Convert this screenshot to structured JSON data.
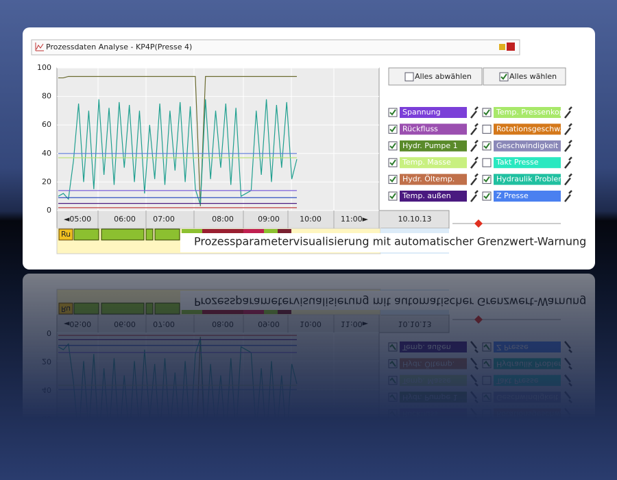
{
  "window": {
    "title": "Prozessdaten Analyse - KP4P(Presse 4)"
  },
  "chart_data": {
    "type": "line",
    "ylim": [
      0,
      100
    ],
    "yticks": [
      0,
      20,
      40,
      60,
      80,
      100
    ],
    "grid": true,
    "series": [
      {
        "color": "#6b6b30",
        "values": [
          93,
          93,
          94,
          94,
          94,
          94,
          94,
          94,
          94,
          94,
          94,
          94,
          94,
          94,
          94,
          94,
          94,
          94,
          94,
          94,
          94,
          94,
          94,
          94,
          94,
          94,
          94,
          94,
          3,
          94,
          94,
          94,
          94,
          94,
          94,
          94,
          94,
          94,
          94,
          94,
          94,
          94,
          94,
          94,
          94,
          94,
          94,
          94
        ]
      },
      {
        "color": "#1f9f8f",
        "values": [
          10,
          12,
          8,
          35,
          75,
          20,
          70,
          15,
          78,
          25,
          72,
          18,
          76,
          30,
          74,
          20,
          70,
          12,
          60,
          22,
          75,
          18,
          70,
          28,
          76,
          20,
          73,
          15,
          4,
          78,
          22,
          70,
          30,
          75,
          18,
          72,
          10,
          12,
          14,
          70,
          25,
          78,
          20,
          74,
          30,
          76,
          22,
          36
        ]
      },
      {
        "color": "#b8e070",
        "values": [
          37,
          37
        ]
      },
      {
        "color": "#5a7ad8",
        "values": [
          40,
          40
        ]
      },
      {
        "color": "#7b5fd8",
        "values": [
          14,
          14
        ]
      },
      {
        "color": "#3050c0",
        "values": [
          9,
          9
        ]
      },
      {
        "color": "#4a1a80",
        "values": [
          5,
          5
        ]
      },
      {
        "color": "#c04040",
        "values": [
          2,
          2
        ]
      }
    ]
  },
  "time_axis": {
    "labels": [
      "◄05:00",
      "06:00",
      "07:00",
      "08:00",
      "09:00",
      "10:00",
      "11:00►"
    ],
    "date": "10.10.13"
  },
  "status_bar": {
    "label": "Ru"
  },
  "buttons": [
    {
      "label": "Alles abwählen",
      "checked": false
    },
    {
      "label": "Alles wählen",
      "checked": true
    }
  ],
  "parameters": [
    {
      "label": "Spannung",
      "color": "#7b3fd8",
      "checked": true
    },
    {
      "label": "Temp. Pressenkopf",
      "color": "#a8e86a",
      "checked": true
    },
    {
      "label": "Rückfluss",
      "color": "#9b4fb0",
      "checked": true
    },
    {
      "label": "Rotationsgeschw.",
      "color": "#d4781a",
      "checked": false
    },
    {
      "label": "Hydr. Pumpe 1",
      "color": "#5a8a2a",
      "checked": true
    },
    {
      "label": "Geschwindigkeit",
      "color": "#8a88b8",
      "checked": true
    },
    {
      "label": "Temp. Masse",
      "color": "#c8f080",
      "checked": true
    },
    {
      "label": "Takt Presse",
      "color": "#2ae8c0",
      "checked": false
    },
    {
      "label": "Hydr. Öltemp.",
      "color": "#c0704a",
      "checked": true
    },
    {
      "label": "Hydraulik Probleme",
      "color": "#20c0a0",
      "checked": true
    },
    {
      "label": "Temp. außen",
      "color": "#4a1a80",
      "checked": true
    },
    {
      "label": "Z Presse",
      "color": "#4a80f0",
      "checked": true
    }
  ],
  "caption": "Prozessparametervisualisierung mit automatischer Grenzwert-Warnung"
}
